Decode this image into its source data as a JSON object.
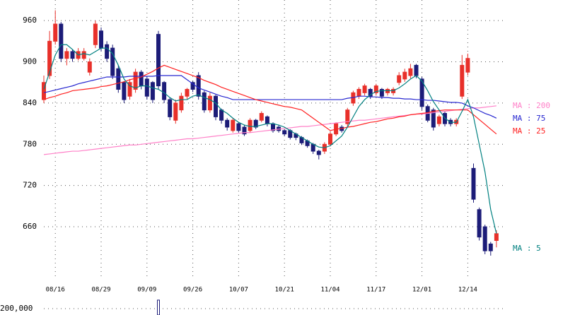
{
  "chart_data": {
    "type": "candlestick",
    "categories": [
      null,
      null,
      "08/16",
      null,
      null,
      null,
      null,
      null,
      null,
      null,
      "08/29",
      null,
      null,
      null,
      null,
      null,
      null,
      null,
      "09/09",
      null,
      null,
      null,
      null,
      null,
      null,
      null,
      "09/26",
      null,
      null,
      null,
      null,
      null,
      null,
      null,
      "10/07",
      null,
      null,
      null,
      null,
      null,
      null,
      null,
      "10/21",
      null,
      null,
      null,
      null,
      null,
      null,
      null,
      "11/04",
      null,
      null,
      null,
      null,
      null,
      null,
      null,
      "11/17",
      null,
      null,
      null,
      null,
      null,
      null,
      null,
      "12/01",
      null,
      null,
      null,
      null,
      null,
      null,
      null,
      "12/14",
      null,
      null,
      null,
      null,
      null
    ],
    "open": [
      845,
      880,
      930,
      955,
      905,
      915,
      905,
      905,
      885,
      925,
      945,
      925,
      920,
      890,
      870,
      850,
      860,
      885,
      875,
      870,
      940,
      870,
      845,
      815,
      830,
      850,
      870,
      880,
      855,
      830,
      850,
      830,
      815,
      800,
      810,
      805,
      800,
      815,
      815,
      820,
      810,
      805,
      800,
      800,
      795,
      790,
      785,
      780,
      770,
      770,
      780,
      795,
      805,
      810,
      840,
      850,
      855,
      860,
      855,
      860,
      855,
      855,
      870,
      875,
      880,
      895,
      875,
      835,
      830,
      810,
      825,
      815,
      810,
      850,
      885,
      745,
      685,
      660,
      635,
      640
    ],
    "high": [
      880,
      945,
      975,
      958,
      920,
      918,
      920,
      920,
      905,
      960,
      950,
      930,
      925,
      895,
      872,
      875,
      890,
      888,
      878,
      872,
      945,
      872,
      848,
      845,
      855,
      862,
      872,
      885,
      858,
      855,
      852,
      832,
      818,
      818,
      812,
      808,
      818,
      817,
      828,
      822,
      812,
      808,
      802,
      802,
      797,
      792,
      787,
      782,
      772,
      783,
      798,
      812,
      808,
      833,
      858,
      863,
      868,
      862,
      868,
      862,
      862,
      863,
      885,
      890,
      897,
      897,
      878,
      838,
      833,
      823,
      828,
      818,
      818,
      910,
      912,
      752,
      688,
      663,
      638,
      655
    ],
    "low": [
      840,
      875,
      925,
      900,
      895,
      900,
      902,
      902,
      880,
      920,
      915,
      900,
      875,
      855,
      840,
      845,
      855,
      860,
      845,
      840,
      860,
      840,
      815,
      810,
      826,
      846,
      856,
      845,
      826,
      826,
      815,
      810,
      800,
      797,
      797,
      792,
      797,
      802,
      812,
      806,
      797,
      797,
      792,
      787,
      786,
      779,
      775,
      766,
      758,
      766,
      777,
      792,
      797,
      806,
      836,
      846,
      851,
      846,
      851,
      846,
      851,
      851,
      866,
      871,
      876,
      876,
      830,
      812,
      800,
      806,
      806,
      806,
      806,
      846,
      880,
      695,
      640,
      620,
      618,
      630
    ],
    "close": [
      870,
      930,
      955,
      905,
      915,
      905,
      915,
      915,
      900,
      955,
      920,
      905,
      880,
      860,
      845,
      870,
      885,
      865,
      850,
      845,
      865,
      845,
      820,
      840,
      850,
      860,
      860,
      850,
      830,
      850,
      820,
      815,
      805,
      815,
      800,
      795,
      815,
      805,
      825,
      810,
      800,
      800,
      795,
      790,
      790,
      782,
      778,
      770,
      765,
      780,
      795,
      810,
      800,
      830,
      855,
      860,
      865,
      850,
      865,
      850,
      860,
      860,
      880,
      885,
      890,
      880,
      835,
      815,
      805,
      820,
      810,
      810,
      815,
      895,
      905,
      700,
      645,
      625,
      625,
      650
    ],
    "up_color": "#e8302a",
    "down_color": "#1c1c78",
    "series": [
      {
        "name": "MA : 200",
        "color": "#ff80c8",
        "values": [
          765,
          766,
          767,
          768,
          769,
          770,
          770,
          771,
          772,
          773,
          774,
          775,
          776,
          777,
          778,
          779,
          779,
          780,
          781,
          782,
          783,
          784,
          785,
          786,
          787,
          788,
          788,
          789,
          790,
          791,
          792,
          793,
          794,
          795,
          796,
          797,
          797,
          798,
          799,
          800,
          801,
          802,
          803,
          804,
          805,
          806,
          806,
          807,
          808,
          809,
          810,
          811,
          812,
          813,
          814,
          815,
          815,
          816,
          817,
          818,
          819,
          820,
          821,
          822,
          823,
          824,
          824,
          825,
          826,
          827,
          828,
          829,
          830,
          831,
          832,
          833,
          833,
          834,
          835,
          836
        ]
      },
      {
        "name": "MA : 75",
        "color": "#2828d0",
        "values": [
          855,
          857,
          859,
          861,
          863,
          865,
          868,
          870,
          872,
          874,
          876,
          878,
          878,
          878,
          878,
          879,
          879,
          879,
          879,
          879,
          880,
          880,
          880,
          880,
          880,
          874,
          868,
          862,
          859,
          856,
          853,
          850,
          848,
          845,
          845,
          845,
          845,
          845,
          845,
          845,
          845,
          845,
          845,
          845,
          845,
          845,
          845,
          845,
          845,
          845,
          845,
          845,
          845,
          847,
          848,
          850,
          850,
          849,
          849,
          848,
          848,
          847,
          847,
          846,
          846,
          845,
          845,
          844,
          844,
          843,
          842,
          841,
          841,
          840,
          836,
          833,
          829,
          825,
          822,
          818
        ]
      },
      {
        "name": "MA : 25",
        "color": "#ff2020",
        "values": [
          845,
          848,
          850,
          853,
          855,
          858,
          859,
          860,
          861,
          862,
          864,
          865,
          867,
          869,
          871,
          874,
          876,
          878,
          882,
          886,
          891,
          895,
          892,
          889,
          886,
          883,
          880,
          877,
          873,
          870,
          867,
          863,
          860,
          857,
          854,
          851,
          848,
          845,
          843,
          841,
          839,
          837,
          835,
          834,
          832,
          830,
          824,
          818,
          812,
          806,
          800,
          802,
          803,
          805,
          806,
          808,
          810,
          812,
          813,
          815,
          817,
          818,
          820,
          821,
          823,
          824,
          825,
          826,
          828,
          829,
          830,
          830,
          830,
          830,
          830,
          823,
          816,
          809,
          802,
          795
        ]
      },
      {
        "name": "MA : 5",
        "color": "#008080",
        "values": [
          860,
          885,
          910,
          925,
          925,
          918,
          910,
          912,
          910,
          915,
          920,
          920,
          912,
          895,
          875,
          865,
          862,
          865,
          865,
          862,
          860,
          855,
          848,
          843,
          845,
          845,
          850,
          852,
          848,
          845,
          840,
          830,
          825,
          818,
          812,
          808,
          806,
          806,
          808,
          810,
          810,
          808,
          805,
          800,
          795,
          790,
          785,
          780,
          776,
          775,
          778,
          785,
          792,
          805,
          820,
          835,
          845,
          852,
          857,
          858,
          858,
          858,
          862,
          868,
          875,
          880,
          872,
          858,
          842,
          830,
          818,
          812,
          812,
          828,
          845,
          820,
          780,
          740,
          685,
          650
        ]
      }
    ],
    "ylim": [
      584,
      990
    ],
    "yticks": [
      960,
      900,
      840,
      780,
      720,
      660
    ],
    "grid": true,
    "volume": {
      "values": [
        null,
        null,
        null,
        null,
        null,
        null,
        null,
        null,
        null,
        null,
        null,
        null,
        null,
        null,
        null,
        null,
        null,
        null,
        null,
        null,
        470000,
        null,
        null,
        null,
        null,
        null,
        null,
        null,
        null,
        null,
        null,
        null,
        null,
        null,
        null,
        null,
        null,
        null,
        null,
        null,
        null,
        null,
        null,
        null,
        null,
        null,
        null,
        null,
        null,
        null,
        null,
        null,
        null,
        null,
        null,
        null,
        null,
        null,
        null,
        null,
        null,
        null,
        null,
        null,
        null,
        null,
        null,
        null,
        null,
        null,
        null,
        null,
        null,
        null,
        null,
        null,
        null,
        null,
        null,
        null
      ],
      "ylim": [
        0,
        980000
      ],
      "yticks": [
        {
          "value": 200000,
          "label": "200,000"
        }
      ],
      "color": "#1c1c78"
    }
  }
}
